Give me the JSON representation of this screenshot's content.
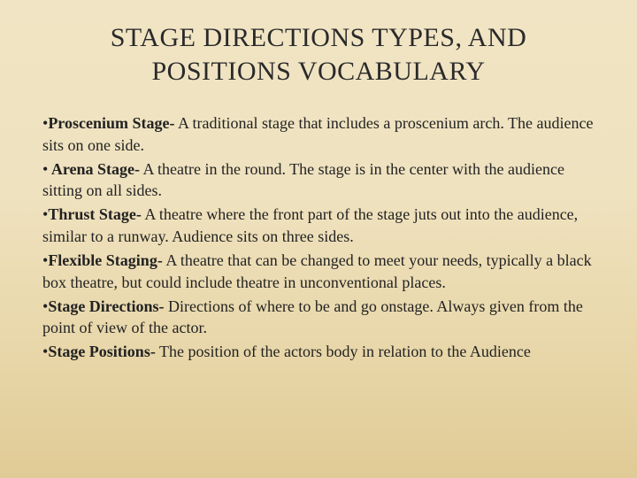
{
  "title_line1": "STAGE DIRECTIONS TYPES, AND",
  "title_line2": "POSITIONS  VOCABULARY",
  "items": [
    {
      "term": "Proscenium Stage-",
      "def": " A traditional stage that includes a proscenium arch.  The audience sits on one side."
    },
    {
      "term": " Arena Stage-",
      "def": " A theatre in the round. The stage is in the center with the audience sitting on all sides."
    },
    {
      "term": "Thrust Stage-",
      "def": " A theatre where the front part of the stage juts out into the audience, similar to a runway. Audience sits on three sides."
    },
    {
      "term": "Flexible Staging-",
      "def": " A theatre that can be changed to meet your needs, typically a black box theatre, but could include theatre in unconventional places."
    },
    {
      "term": "Stage Directions-",
      "def": " Directions of where to be and go onstage. Always given from the point of view of the actor."
    },
    {
      "term": "Stage Positions-",
      "def": " The position of the actors body in relation to the Audience"
    }
  ],
  "bullet": "•",
  "style": {
    "background_gradient": [
      "#f0e4c4",
      "#efe2bf",
      "#e8d6a8",
      "#e0cb96"
    ],
    "title_fontsize": 30,
    "body_fontsize": 18,
    "text_color": "#222222",
    "title_color": "#2a2a2a",
    "font_family": "Georgia"
  }
}
